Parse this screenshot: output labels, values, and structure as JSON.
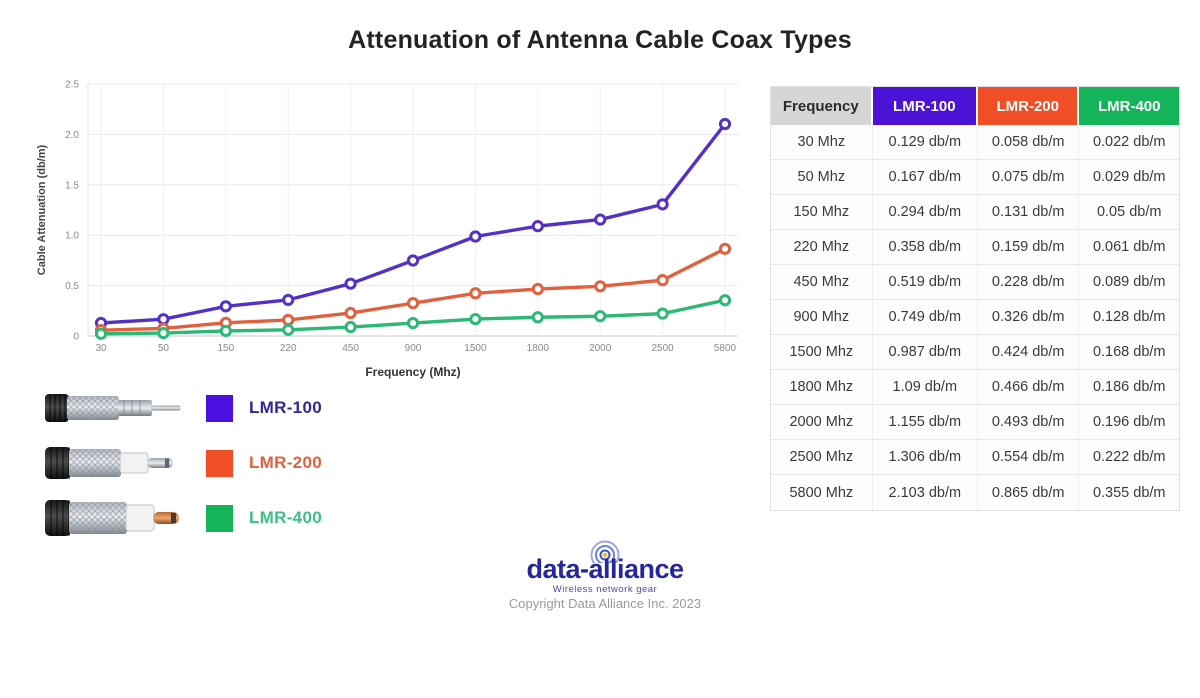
{
  "title": "Attenuation of Antenna Cable Coax Types",
  "chart_data": {
    "type": "line",
    "categories": [
      "30",
      "50",
      "150",
      "220",
      "450",
      "900",
      "1500",
      "1800",
      "2000",
      "2500",
      "5800"
    ],
    "series": [
      {
        "name": "LMR-100",
        "color": "#5431C6",
        "values": [
          0.129,
          0.167,
          0.294,
          0.358,
          0.519,
          0.749,
          0.987,
          1.09,
          1.155,
          1.306,
          2.103
        ]
      },
      {
        "name": "LMR-200",
        "color": "#E2603E",
        "values": [
          0.058,
          0.075,
          0.131,
          0.159,
          0.228,
          0.326,
          0.424,
          0.466,
          0.493,
          0.554,
          0.865
        ]
      },
      {
        "name": "LMR-400",
        "color": "#2CB877",
        "values": [
          0.022,
          0.029,
          0.05,
          0.061,
          0.089,
          0.128,
          0.168,
          0.186,
          0.196,
          0.222,
          0.355
        ]
      }
    ],
    "title": "Attenuation of Antenna Cable Coax Types",
    "xlabel": "Frequency (Mhz)",
    "ylabel": "Cable Attenuation (db/m)",
    "ylim": [
      0,
      2.5
    ],
    "yticks": [
      0,
      0.5,
      1.0,
      1.5,
      2.0,
      2.5
    ],
    "grid": true,
    "legend_position": "below-left",
    "marker": "open-circle"
  },
  "table": {
    "header": [
      "Frequency",
      "LMR-100",
      "LMR-200",
      "LMR-400"
    ],
    "header_colors": [
      "#D6D6D6",
      "#4A13D6",
      "#F04E26",
      "#14B45A"
    ],
    "header_text_colors": [
      "#2b2b2b",
      "#ffffff",
      "#ffffff",
      "#ffffff"
    ],
    "rows": [
      [
        "30 Mhz",
        "0.129 db/m",
        "0.058 db/m",
        "0.022 db/m"
      ],
      [
        "50 Mhz",
        "0.167 db/m",
        "0.075 db/m",
        "0.029 db/m"
      ],
      [
        "150 Mhz",
        "0.294 db/m",
        "0.131 db/m",
        "0.05 db/m"
      ],
      [
        "220 Mhz",
        "0.358 db/m",
        "0.159 db/m",
        "0.061 db/m"
      ],
      [
        "450 Mhz",
        "0.519 db/m",
        "0.228 db/m",
        "0.089 db/m"
      ],
      [
        "900 Mhz",
        "0.749 db/m",
        "0.326 db/m",
        "0.128 db/m"
      ],
      [
        "1500 Mhz",
        "0.987 db/m",
        "0.424 db/m",
        "0.168 db/m"
      ],
      [
        "1800 Mhz",
        "1.09 db/m",
        "0.466 db/m",
        "0.186 db/m"
      ],
      [
        "2000 Mhz",
        "1.155 db/m",
        "0.493 db/m",
        "0.196 db/m"
      ],
      [
        "2500 Mhz",
        "1.306 db/m",
        "0.554 db/m",
        "0.222 db/m"
      ],
      [
        "5800 Mhz",
        "2.103 db/m",
        "0.865 db/m",
        "0.355 db/m"
      ]
    ]
  },
  "legend": {
    "items": [
      {
        "label": "LMR-100",
        "swatch_color": "#4A10E0",
        "text_color": "#34249C"
      },
      {
        "label": "LMR-200",
        "swatch_color": "#F04E26",
        "text_color": "#E2603E"
      },
      {
        "label": "LMR-400",
        "swatch_color": "#14B45A",
        "text_color": "#3DC084"
      }
    ]
  },
  "logo": {
    "wordmark": "data-alliance",
    "tagline": "Wireless network gear"
  },
  "copyright": "Copyright Data Alliance Inc. 2023"
}
